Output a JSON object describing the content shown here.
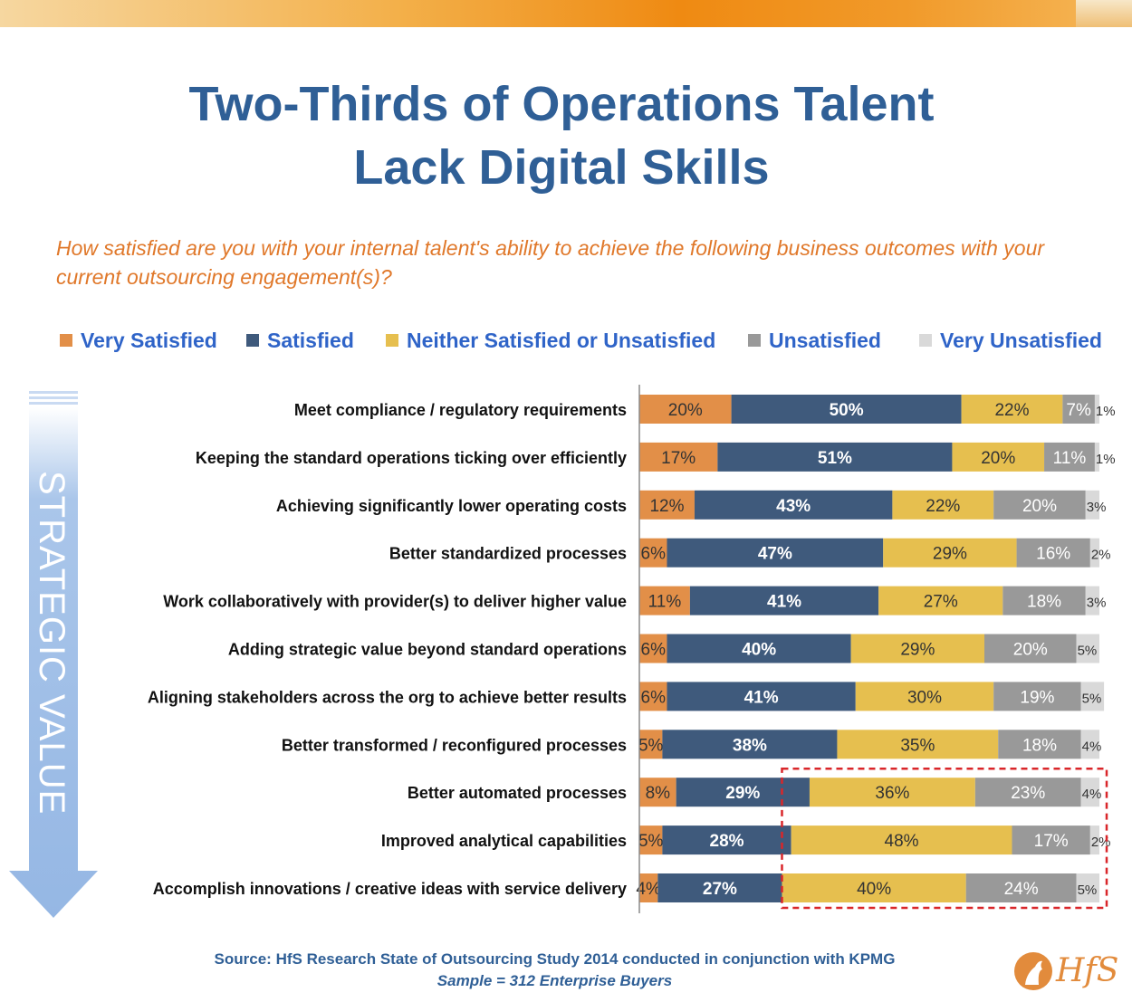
{
  "title_line1": "Two-Thirds of Operations Talent",
  "title_line2": "Lack Digital Skills",
  "question": "How satisfied are you with your internal talent's ability to achieve the following business outcomes with your current outsourcing engagement(s)?",
  "arrow_label": "STRATEGIC VALUE",
  "source": "Source: HfS Research State of Outsourcing Study 2014 conducted in conjunction with KPMG",
  "sample": "Sample = 312 Enterprise Buyers",
  "logo_text": "HfS",
  "colors": {
    "very_satisfied": "#e28f48",
    "satisfied": "#3f5a7c",
    "neither": "#e6bf4f",
    "unsatisfied": "#999999",
    "very_unsatisfied": "#d9d9d9",
    "legend_text": "#2f64c8",
    "title": "#2f5f96",
    "question": "#e0782a",
    "highlight": "#d9262a"
  },
  "chart_data": {
    "type": "bar",
    "orientation": "horizontal",
    "stacked": true,
    "percent_stacked": true,
    "legend_position": "top",
    "grid": false,
    "categories": [
      "Meet compliance / regulatory requirements",
      "Keeping the standard operations ticking over efficiently",
      "Achieving significantly lower operating costs",
      "Better standardized processes",
      "Work collaboratively with provider(s) to deliver higher value",
      "Adding strategic value beyond standard operations",
      "Aligning stakeholders across the org to achieve better results",
      "Better transformed / reconfigured processes",
      "Better automated processes",
      "Improved analytical capabilities",
      "Accomplish innovations / creative ideas with service delivery"
    ],
    "series": [
      {
        "name": "Very Satisfied",
        "values": [
          20,
          17,
          12,
          6,
          11,
          6,
          6,
          5,
          8,
          5,
          4
        ]
      },
      {
        "name": "Satisfied",
        "values": [
          50,
          51,
          43,
          47,
          41,
          40,
          41,
          38,
          29,
          28,
          27
        ]
      },
      {
        "name": "Neither Satisfied or Unsatisfied",
        "values": [
          22,
          20,
          22,
          29,
          27,
          29,
          30,
          35,
          36,
          48,
          40
        ]
      },
      {
        "name": "Unsatisfied",
        "values": [
          7,
          11,
          20,
          16,
          18,
          20,
          19,
          18,
          23,
          17,
          24
        ]
      },
      {
        "name": "Very Unsatisfied",
        "values": [
          1,
          1,
          3,
          2,
          3,
          5,
          5,
          4,
          4,
          2,
          5
        ]
      }
    ],
    "highlight": {
      "categories_from_index": 8,
      "series_from_index": 2,
      "style": "dashed-box"
    }
  }
}
